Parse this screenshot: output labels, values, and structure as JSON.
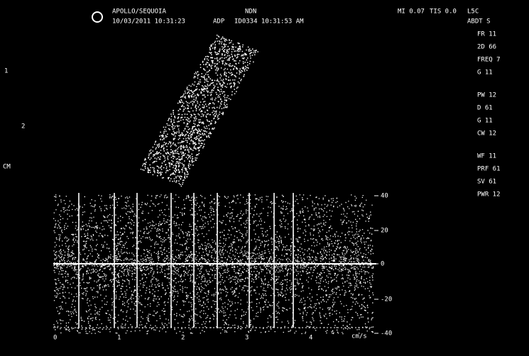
{
  "header": {
    "logo_text": "APOLLO/SEQUOIA",
    "date": "10/03/2011 10:31:23",
    "site": "NDN",
    "prefix": "ADP",
    "exam": "ID0334 10:31:53 AM",
    "mi": "MI 0.07",
    "tis": "TIS 0.0",
    "probe": "L5C"
  },
  "right_panel": {
    "title": "ABDT S",
    "lines": [
      "FR 11",
      "2D 66",
      "FREQ 7",
      "G 11",
      "PW 12",
      "D 61",
      "G 11",
      "CW 12",
      "WF 11",
      "PRF 61",
      "SV 61",
      "PWR 12"
    ]
  },
  "left_markers": [
    "1",
    "2",
    "CM"
  ],
  "scale": {
    "labels": [
      "40",
      "20",
      "0",
      "-20",
      "-40"
    ],
    "unit": "cm/s"
  },
  "time_ticks": [
    "0",
    "1",
    "2",
    "3",
    "4"
  ]
}
